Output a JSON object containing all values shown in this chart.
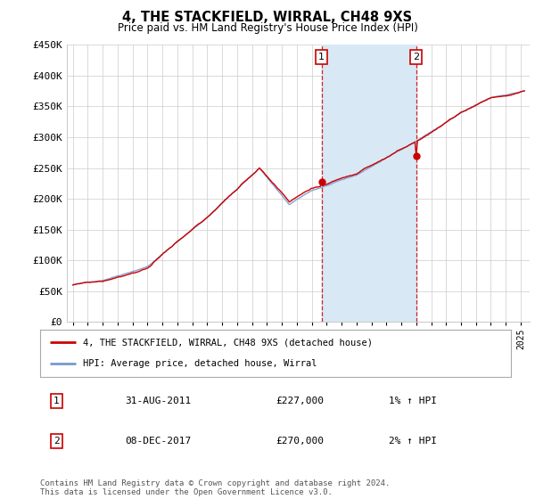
{
  "title": "4, THE STACKFIELD, WIRRAL, CH48 9XS",
  "subtitle": "Price paid vs. HM Land Registry's House Price Index (HPI)",
  "ylim": [
    0,
    450000
  ],
  "yticks": [
    0,
    50000,
    100000,
    150000,
    200000,
    250000,
    300000,
    350000,
    400000,
    450000
  ],
  "ytick_labels": [
    "£0",
    "£50K",
    "£100K",
    "£150K",
    "£200K",
    "£250K",
    "£300K",
    "£350K",
    "£400K",
    "£450K"
  ],
  "hpi_color": "#7799cc",
  "price_color": "#cc0000",
  "shade_color": "#d8e8f5",
  "grid_color": "#cccccc",
  "marker1_x": 2011.667,
  "marker2_x": 2018.0,
  "marker1_price": 227000,
  "marker2_price": 270000,
  "purchase1_date": "31-AUG-2011",
  "purchase1_price": "£227,000",
  "purchase1_hpi": "1% ↑ HPI",
  "purchase2_date": "08-DEC-2017",
  "purchase2_price": "£270,000",
  "purchase2_hpi": "2% ↑ HPI",
  "legend_line1": "4, THE STACKFIELD, WIRRAL, CH48 9XS (detached house)",
  "legend_line2": "HPI: Average price, detached house, Wirral",
  "footer": "Contains HM Land Registry data © Crown copyright and database right 2024.\nThis data is licensed under the Open Government Licence v3.0."
}
